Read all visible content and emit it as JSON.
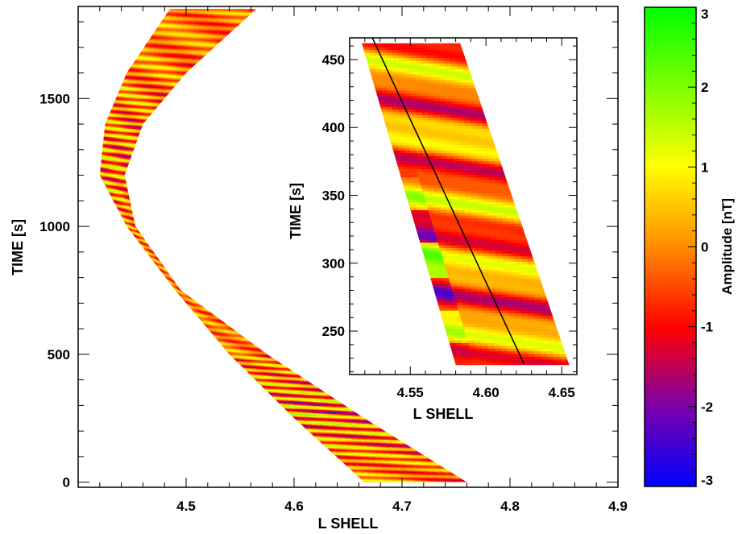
{
  "chart_data": [
    {
      "type": "heatmap",
      "panel": "main",
      "title": "",
      "xlabel": "L SHELL",
      "ylabel": "TIME [s]",
      "xlim": [
        4.4,
        4.9
      ],
      "ylim": [
        -20,
        1860
      ],
      "xticks": [
        4.5,
        4.6,
        4.7,
        4.8,
        4.9
      ],
      "xtick_labels": [
        "4.5",
        "4.6",
        "4.7",
        "4.8",
        "4.9"
      ],
      "yticks": [
        0,
        500,
        1000,
        1500
      ],
      "ytick_labels": [
        "0",
        "500",
        "1000",
        "1500"
      ],
      "band": {
        "description_left_edge_L_vs_time": [
          {
            "time": 0,
            "L": 4.665
          },
          {
            "time": 250,
            "L": 4.6
          },
          {
            "time": 500,
            "L": 4.54
          },
          {
            "time": 750,
            "L": 4.49
          },
          {
            "time": 1000,
            "L": 4.445
          },
          {
            "time": 1200,
            "L": 4.42
          },
          {
            "time": 1400,
            "L": 4.425
          },
          {
            "time": 1600,
            "L": 4.445
          },
          {
            "time": 1850,
            "L": 4.485
          }
        ],
        "description_right_edge_L_vs_time": [
          {
            "time": 0,
            "L": 4.76
          },
          {
            "time": 250,
            "L": 4.665
          },
          {
            "time": 500,
            "L": 4.575
          },
          {
            "time": 750,
            "L": 4.495
          },
          {
            "time": 1000,
            "L": 4.453
          },
          {
            "time": 1200,
            "L": 4.443
          },
          {
            "time": 1400,
            "L": 4.46
          },
          {
            "time": 1600,
            "L": 4.5
          },
          {
            "time": 1850,
            "L": 4.565
          }
        ]
      },
      "value_range": [
        -3,
        3
      ],
      "value_label": "Amplitude [nT]"
    },
    {
      "type": "heatmap",
      "panel": "inset",
      "xlabel": "L SHELL",
      "ylabel": "TIME [s]",
      "xlim": [
        4.51,
        4.66
      ],
      "ylim": [
        218,
        466
      ],
      "xticks": [
        4.55,
        4.6,
        4.65
      ],
      "xtick_labels": [
        "4.55",
        "4.60",
        "4.65"
      ],
      "yticks": [
        250,
        300,
        350,
        400,
        450
      ],
      "ytick_labels": [
        "250",
        "300",
        "350",
        "400",
        "450"
      ],
      "band": {
        "left_edge": [
          {
            "time": 225,
            "L": 4.58
          },
          {
            "time": 462,
            "L": 4.518
          }
        ],
        "right_edge": [
          {
            "time": 225,
            "L": 4.655
          },
          {
            "time": 462,
            "L": 4.583
          }
        ]
      },
      "line": {
        "points": [
          {
            "L": 4.525,
            "time": 466
          },
          {
            "L": 4.625,
            "time": 226
          }
        ],
        "color": "#000000"
      }
    }
  ],
  "colorbar": {
    "label": "Amplitude [nT]",
    "min": -3,
    "max": 3,
    "ticks": [
      3,
      2,
      1,
      0,
      -1,
      -2,
      -3
    ],
    "tick_labels": [
      "3",
      "2",
      "1",
      "0",
      "-1",
      "-2",
      "-3"
    ],
    "colors": [
      "#0000ff",
      "#8000a0",
      "#ff0000",
      "#ff8000",
      "#ffff00",
      "#80ff00",
      "#00ff00"
    ]
  }
}
